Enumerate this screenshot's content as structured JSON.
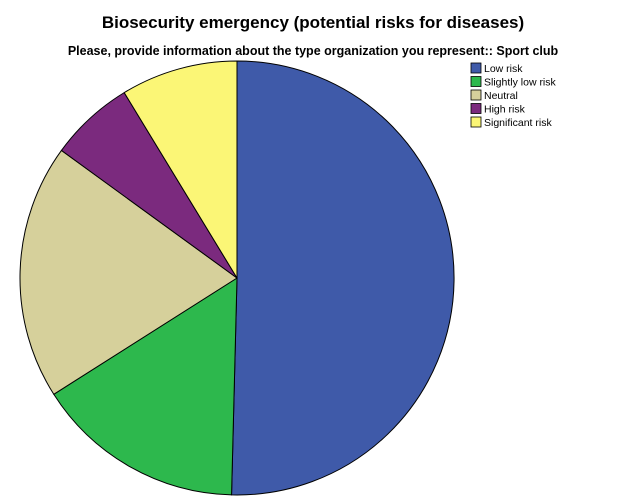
{
  "chart_data": {
    "type": "pie",
    "title": "Biosecurity emergency (potential risks for diseases)",
    "subtitle": "Please, provide information about the type organization you represent:: Sport club",
    "categories": [
      "Low risk",
      "Slightly low risk",
      "Neutral",
      "High risk",
      "Significant risk"
    ],
    "values": [
      50.4,
      15.6,
      19.0,
      6.3,
      8.7
    ],
    "colors": [
      "#3f5aa9",
      "#2db84d",
      "#d6d09b",
      "#7b2a7e",
      "#fbf676"
    ],
    "start_angle_deg": 0,
    "direction": "clockwise",
    "legend_position": "top-right",
    "grid": false
  }
}
